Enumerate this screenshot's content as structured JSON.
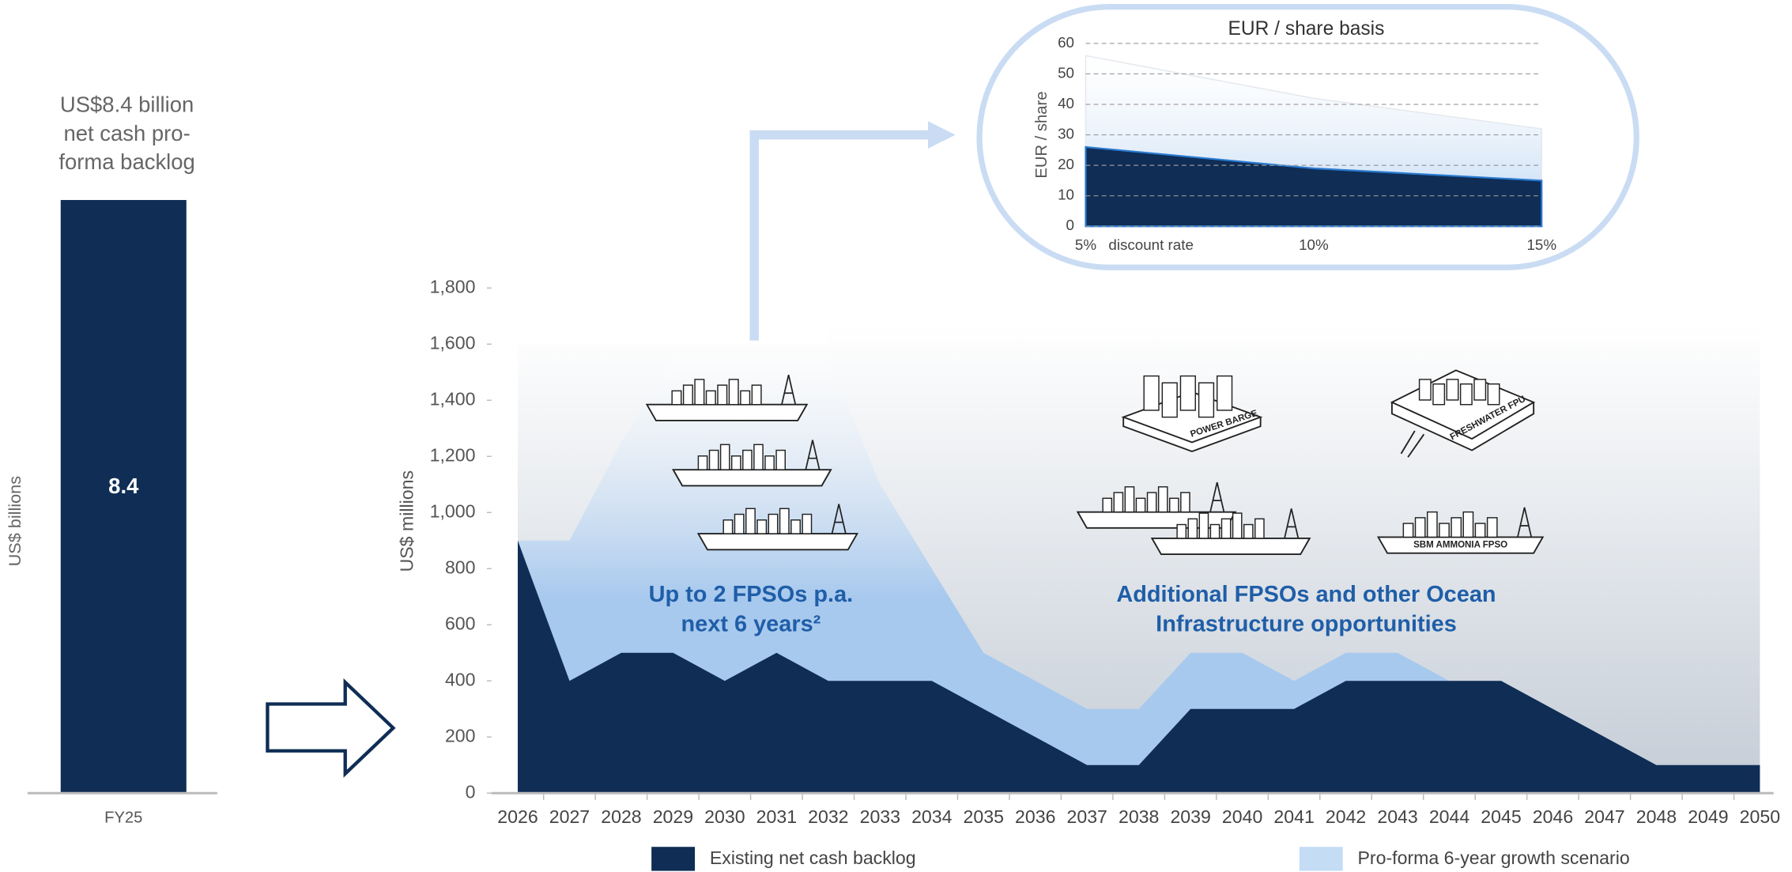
{
  "chart_data": [
    {
      "type": "bar",
      "title": [
        "US$8.4 billion",
        "net cash pro-",
        "forma backlog"
      ],
      "ylabel": "US$ billions",
      "categories": [
        "FY25"
      ],
      "values": [
        8.4
      ],
      "color": "#0f2d55"
    },
    {
      "type": "area",
      "ylabel": "US$ millions",
      "categories": [
        "2026",
        "2027",
        "2028",
        "2029",
        "2030",
        "2031",
        "2032",
        "2033",
        "2034",
        "2035",
        "2036",
        "2037",
        "2038",
        "2039",
        "2040",
        "2041",
        "2042",
        "2043",
        "2044",
        "2045",
        "2046",
        "2047",
        "2048",
        "2049",
        "2050"
      ],
      "series": [
        {
          "name": "Existing net cash backlog",
          "color": "#0f2d55",
          "values": [
            900,
            400,
            500,
            500,
            400,
            500,
            400,
            400,
            400,
            300,
            200,
            100,
            100,
            300,
            300,
            300,
            400,
            400,
            400,
            400,
            300,
            200,
            100,
            100,
            100
          ]
        },
        {
          "name": "Pro-forma 6-year growth scenario",
          "color": "#c5dcf5",
          "values": [
            900,
            900,
            1250,
            1550,
            1550,
            1550,
            1550,
            1100,
            800,
            500,
            400,
            300,
            300,
            500,
            500,
            400,
            500,
            500,
            400,
            400,
            300,
            200,
            100,
            100,
            100
          ]
        }
      ],
      "ylim": [
        0,
        1800
      ],
      "yticks": [
        0,
        200,
        400,
        600,
        800,
        {
          "value": 1000,
          "label": "1,000"
        },
        {
          "value": 1200,
          "label": "1,200"
        },
        {
          "value": 1400,
          "label": "1,400"
        },
        {
          "value": 1600,
          "label": "1,600"
        },
        {
          "value": 1800,
          "label": "1,800"
        }
      ],
      "annotations": [
        [
          "Up to 2 FPSOs p.a.",
          "next 6 years²"
        ],
        [
          "Additional FPSOs and other Ocean",
          "Infrastructure opportunities"
        ]
      ],
      "icon_labels": [
        "POWER BARGE",
        "FRESHWATER FPU",
        "SBM AMMONIA FPSO"
      ]
    },
    {
      "type": "area",
      "title": "EUR / share basis",
      "ylabel": "EUR / share",
      "xlabel": "discount rate",
      "x": [
        5,
        10,
        15
      ],
      "series": [
        {
          "color": "#0f2d55",
          "values": [
            26,
            19,
            15
          ]
        },
        {
          "color": "#c5dcf5",
          "values": [
            56,
            42,
            32
          ]
        }
      ],
      "xlim": [
        5,
        15
      ],
      "xticks": [
        {
          "value": 5,
          "label": "5%"
        },
        {
          "value": 10,
          "label": "10%"
        },
        {
          "value": 15,
          "label": "15%"
        }
      ],
      "ylim": [
        0,
        60
      ],
      "yticks": [
        0,
        10,
        20,
        30,
        40,
        50,
        60
      ],
      "grid": true
    }
  ]
}
